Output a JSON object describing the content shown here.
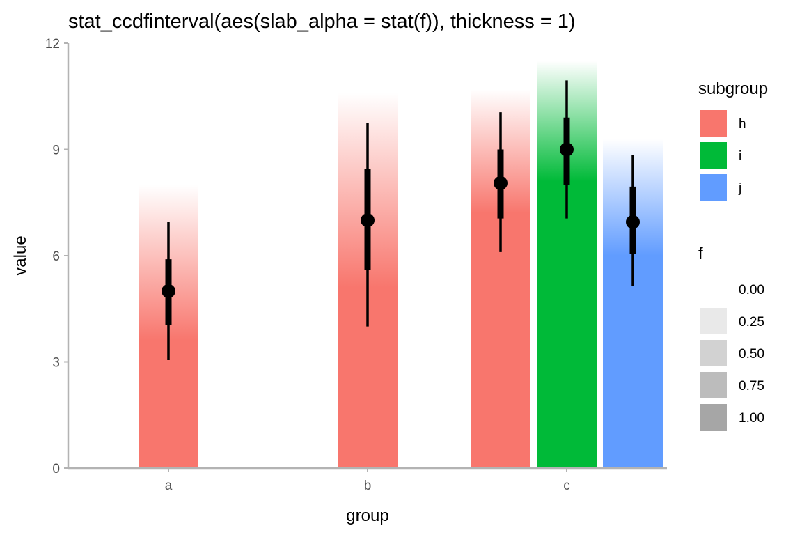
{
  "chart_data": {
    "type": "bar",
    "title": "stat_ccdfinterval(aes(slab_alpha = stat(f)), thickness = 1)",
    "xlabel": "group",
    "ylabel": "value",
    "ylim": [
      0,
      12
    ],
    "yticks": [
      "0",
      "3",
      "6",
      "9",
      "12"
    ],
    "yticks_values": [
      0,
      3,
      6,
      9,
      12
    ],
    "categories": [
      "a",
      "b",
      "c"
    ],
    "grid": false,
    "legend_position": "right",
    "series": [
      {
        "group": "a",
        "subgroup": "h",
        "color": "#F8766D",
        "median": 5.0,
        "inner": [
          4.05,
          5.9
        ],
        "outer": [
          3.05,
          6.95
        ],
        "fade_start": 3.6,
        "slab_top": 8.0
      },
      {
        "group": "b",
        "subgroup": "h",
        "color": "#F8766D",
        "median": 7.0,
        "inner": [
          5.6,
          8.45
        ],
        "outer": [
          4.0,
          9.75
        ],
        "fade_start": 5.1,
        "slab_top": 10.6
      },
      {
        "group": "c",
        "subgroup": "h",
        "color": "#F8766D",
        "median": 8.05,
        "inner": [
          7.05,
          9.0
        ],
        "outer": [
          6.1,
          10.05
        ],
        "fade_start": 7.2,
        "slab_top": 10.7
      },
      {
        "group": "c",
        "subgroup": "i",
        "color": "#00BA38",
        "median": 9.0,
        "inner": [
          8.0,
          9.9
        ],
        "outer": [
          7.05,
          10.95
        ],
        "fade_start": 8.1,
        "slab_top": 11.5
      },
      {
        "group": "c",
        "subgroup": "j",
        "color": "#619CFF",
        "median": 6.95,
        "inner": [
          6.05,
          7.95
        ],
        "outer": [
          5.15,
          8.85
        ],
        "fade_start": 6.0,
        "slab_top": 9.3
      }
    ],
    "legend_subgroup": {
      "title": "subgroup",
      "items": [
        {
          "label": "h",
          "color": "#F8766D"
        },
        {
          "label": "i",
          "color": "#00BA38"
        },
        {
          "label": "j",
          "color": "#619CFF"
        }
      ]
    },
    "legend_f": {
      "title": "f",
      "items": [
        {
          "label": "0.00",
          "alpha": 0.0
        },
        {
          "label": "0.25",
          "alpha": 0.25
        },
        {
          "label": "0.50",
          "alpha": 0.5
        },
        {
          "label": "0.75",
          "alpha": 0.75
        },
        {
          "label": "1.00",
          "alpha": 1.0
        }
      ]
    }
  }
}
